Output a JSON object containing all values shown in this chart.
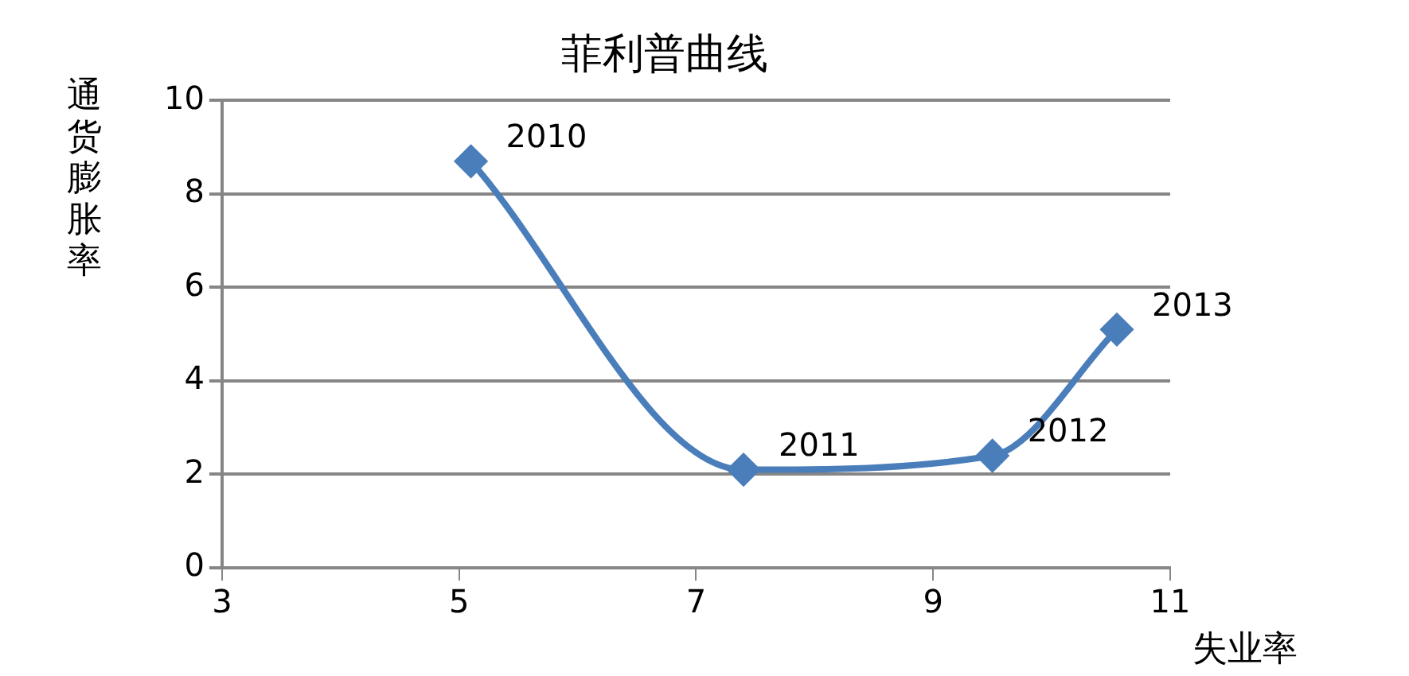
{
  "chart_data": {
    "type": "line",
    "title": "菲利普曲线",
    "xlabel": "失业率",
    "ylabel": "通货膨胀率",
    "x": [
      5.1,
      7.4,
      9.5,
      10.55
    ],
    "series": [
      {
        "color": "#4a7ebb",
        "values": [
          8.7,
          2.1,
          2.4,
          5.1
        ]
      }
    ],
    "xlim": [
      3,
      11
    ],
    "xticks": [
      3,
      5,
      7,
      9,
      11
    ],
    "ylim": [
      0,
      10
    ],
    "yticks": [
      0,
      2,
      4,
      6,
      8,
      10
    ],
    "grid": "y",
    "legend": false,
    "marker": "diamond",
    "line_style": "solid",
    "annotations": [
      {
        "text": "2010",
        "x": 5.1,
        "y": 8.7
      },
      {
        "text": "2011",
        "x": 7.4,
        "y": 2.1
      },
      {
        "text": "2012",
        "x": 9.5,
        "y": 2.4
      },
      {
        "text": "2013",
        "x": 10.55,
        "y": 5.1
      }
    ]
  }
}
